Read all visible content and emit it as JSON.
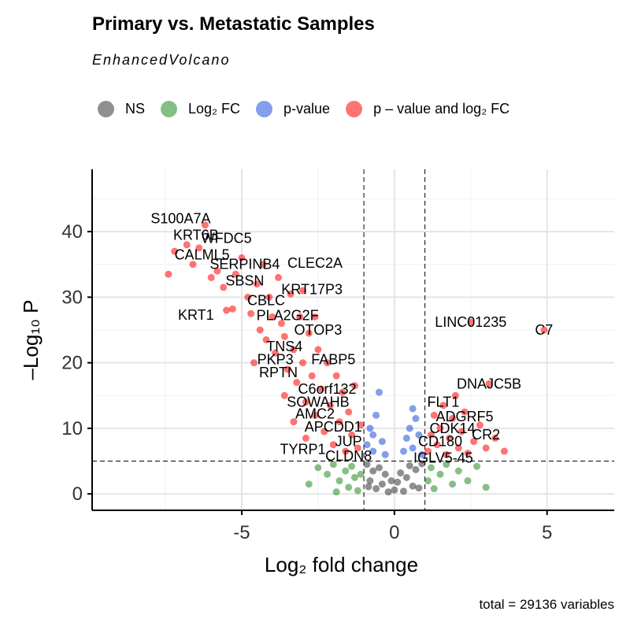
{
  "title": "Primary vs. Metastatic Samples",
  "subtitle": "EnhancedVolcano",
  "caption": "total = 29136 variables",
  "legend": [
    {
      "key": "ns",
      "label": "NS",
      "color": "#333333"
    },
    {
      "key": "fc",
      "label": "Log₂ FC",
      "color": "#228b22"
    },
    {
      "key": "p",
      "label": "p-value",
      "color": "#1e4fd8"
    },
    {
      "key": "pfc",
      "label": "p – value and log₂ FC",
      "color": "#ff0000"
    }
  ],
  "chart_data": {
    "type": "scatter",
    "xlabel": "Log₂ fold change",
    "ylabel": "–Log₁₀ P",
    "xlim": [
      -9.9,
      7.2
    ],
    "ylim": [
      -2.5,
      49.5
    ],
    "xticks": [
      -5,
      0,
      5
    ],
    "yticks": [
      0,
      10,
      20,
      30,
      40
    ],
    "fc_cutoff": 1,
    "p_cutoff_neglog10": 5,
    "grid": true,
    "legend_position": "top",
    "colors": {
      "ns": "#333333",
      "fc": "#228b22",
      "p": "#1e4fd8",
      "pfc": "#ff0000"
    },
    "labeled_points": [
      {
        "label": "S100A7A",
        "x": -7.0,
        "y": 42.0
      },
      {
        "label": "KRT6B",
        "x": -6.5,
        "y": 39.5
      },
      {
        "label": "WFDC5",
        "x": -5.5,
        "y": 39.0
      },
      {
        "label": "CALML5",
        "x": -6.3,
        "y": 36.5
      },
      {
        "label": "SERPINB4",
        "x": -4.9,
        "y": 35.0
      },
      {
        "label": "CLEC2A",
        "x": -2.6,
        "y": 35.2
      },
      {
        "label": "SBSN",
        "x": -4.9,
        "y": 32.5
      },
      {
        "label": "KRT17P3",
        "x": -2.7,
        "y": 31.2
      },
      {
        "label": "CBLC",
        "x": -4.2,
        "y": 29.5
      },
      {
        "label": "KRT1",
        "x": -6.5,
        "y": 27.3
      },
      {
        "label": "PLA2G2F",
        "x": -3.5,
        "y": 27.2
      },
      {
        "label": "OTOP3",
        "x": -2.5,
        "y": 25.0
      },
      {
        "label": "TNS4",
        "x": -3.6,
        "y": 22.5
      },
      {
        "label": "PKP3",
        "x": -3.9,
        "y": 20.5
      },
      {
        "label": "FABP5",
        "x": -2.0,
        "y": 20.5
      },
      {
        "label": "RPTN",
        "x": -3.8,
        "y": 18.5
      },
      {
        "label": "C6orf132",
        "x": -2.2,
        "y": 16.0
      },
      {
        "label": "SOWAHB",
        "x": -2.5,
        "y": 14.0
      },
      {
        "label": "AMC2",
        "x": -2.6,
        "y": 12.2
      },
      {
        "label": "APCDD1",
        "x": -2.0,
        "y": 10.2
      },
      {
        "label": "JUP",
        "x": -1.5,
        "y": 8.0
      },
      {
        "label": "TYRP1",
        "x": -3.0,
        "y": 6.8
      },
      {
        "label": "CLDN8",
        "x": -1.5,
        "y": 5.8
      },
      {
        "label": "LINC01235",
        "x": 2.5,
        "y": 26.2
      },
      {
        "label": "C7",
        "x": 4.9,
        "y": 25.0
      },
      {
        "label": "DNAJC5B",
        "x": 3.1,
        "y": 16.8
      },
      {
        "label": "FLT1",
        "x": 1.6,
        "y": 14.0
      },
      {
        "label": "ADGRF5",
        "x": 2.3,
        "y": 11.8
      },
      {
        "label": "CDK14",
        "x": 1.9,
        "y": 10.0
      },
      {
        "label": "CR2",
        "x": 3.0,
        "y": 9.0
      },
      {
        "label": "CD180",
        "x": 1.5,
        "y": 8.0
      },
      {
        "label": "IGLV5-45",
        "x": 1.6,
        "y": 5.5
      }
    ],
    "points": [
      {
        "x": -7.4,
        "y": 33.5,
        "g": "pfc"
      },
      {
        "x": -7.2,
        "y": 37.0,
        "g": "pfc"
      },
      {
        "x": -6.8,
        "y": 38.0,
        "g": "pfc"
      },
      {
        "x": -6.6,
        "y": 35.0,
        "g": "pfc"
      },
      {
        "x": -6.4,
        "y": 37.5,
        "g": "pfc"
      },
      {
        "x": -6.2,
        "y": 41.0,
        "g": "pfc"
      },
      {
        "x": -6.0,
        "y": 33.0,
        "g": "pfc"
      },
      {
        "x": -5.8,
        "y": 34.0,
        "g": "pfc"
      },
      {
        "x": -5.6,
        "y": 31.5,
        "g": "pfc"
      },
      {
        "x": -5.5,
        "y": 28.0,
        "g": "pfc"
      },
      {
        "x": -5.3,
        "y": 28.2,
        "g": "pfc"
      },
      {
        "x": -5.2,
        "y": 33.5,
        "g": "pfc"
      },
      {
        "x": -5.0,
        "y": 36.0,
        "g": "pfc"
      },
      {
        "x": -4.8,
        "y": 30.0,
        "g": "pfc"
      },
      {
        "x": -4.7,
        "y": 27.5,
        "g": "pfc"
      },
      {
        "x": -4.5,
        "y": 32.0,
        "g": "pfc"
      },
      {
        "x": -4.4,
        "y": 25.0,
        "g": "pfc"
      },
      {
        "x": -4.3,
        "y": 35.0,
        "g": "pfc"
      },
      {
        "x": -4.2,
        "y": 23.5,
        "g": "pfc"
      },
      {
        "x": -4.1,
        "y": 30.0,
        "g": "pfc"
      },
      {
        "x": -4.0,
        "y": 27.0,
        "g": "pfc"
      },
      {
        "x": -3.9,
        "y": 21.5,
        "g": "pfc"
      },
      {
        "x": -3.8,
        "y": 33.0,
        "g": "pfc"
      },
      {
        "x": -3.7,
        "y": 26.0,
        "g": "pfc"
      },
      {
        "x": -3.6,
        "y": 24.0,
        "g": "pfc"
      },
      {
        "x": -3.5,
        "y": 19.0,
        "g": "pfc"
      },
      {
        "x": -3.4,
        "y": 30.5,
        "g": "pfc"
      },
      {
        "x": -3.3,
        "y": 22.0,
        "g": "pfc"
      },
      {
        "x": -3.2,
        "y": 17.0,
        "g": "pfc"
      },
      {
        "x": -3.1,
        "y": 27.0,
        "g": "pfc"
      },
      {
        "x": -3.0,
        "y": 20.0,
        "g": "pfc"
      },
      {
        "x": -2.9,
        "y": 14.0,
        "g": "pfc"
      },
      {
        "x": -2.8,
        "y": 24.5,
        "g": "pfc"
      },
      {
        "x": -2.7,
        "y": 18.0,
        "g": "pfc"
      },
      {
        "x": -2.6,
        "y": 12.0,
        "g": "pfc"
      },
      {
        "x": -2.5,
        "y": 22.0,
        "g": "pfc"
      },
      {
        "x": -2.4,
        "y": 16.0,
        "g": "pfc"
      },
      {
        "x": -2.3,
        "y": 9.5,
        "g": "pfc"
      },
      {
        "x": -2.2,
        "y": 20.0,
        "g": "pfc"
      },
      {
        "x": -2.1,
        "y": 13.5,
        "g": "pfc"
      },
      {
        "x": -2.0,
        "y": 7.5,
        "g": "pfc"
      },
      {
        "x": -1.9,
        "y": 18.0,
        "g": "pfc"
      },
      {
        "x": -1.8,
        "y": 11.0,
        "g": "pfc"
      },
      {
        "x": -1.7,
        "y": 15.5,
        "g": "pfc"
      },
      {
        "x": -1.6,
        "y": 6.5,
        "g": "pfc"
      },
      {
        "x": -1.5,
        "y": 12.5,
        "g": "pfc"
      },
      {
        "x": -1.4,
        "y": 9.0,
        "g": "pfc"
      },
      {
        "x": -1.3,
        "y": 16.5,
        "g": "pfc"
      },
      {
        "x": -1.2,
        "y": 7.0,
        "g": "pfc"
      },
      {
        "x": -1.1,
        "y": 10.5,
        "g": "pfc"
      },
      {
        "x": -3.3,
        "y": 11.0,
        "g": "pfc"
      },
      {
        "x": -2.9,
        "y": 8.5,
        "g": "pfc"
      },
      {
        "x": -3.6,
        "y": 15.0,
        "g": "pfc"
      },
      {
        "x": -4.6,
        "y": 20.0,
        "g": "pfc"
      },
      {
        "x": -3.0,
        "y": 31.0,
        "g": "pfc"
      },
      {
        "x": -2.6,
        "y": 27.0,
        "g": "pfc"
      },
      {
        "x": 1.1,
        "y": 6.5,
        "g": "pfc"
      },
      {
        "x": 1.2,
        "y": 9.0,
        "g": "pfc"
      },
      {
        "x": 1.3,
        "y": 12.0,
        "g": "pfc"
      },
      {
        "x": 1.4,
        "y": 7.5,
        "g": "pfc"
      },
      {
        "x": 1.5,
        "y": 10.0,
        "g": "pfc"
      },
      {
        "x": 1.6,
        "y": 13.5,
        "g": "pfc"
      },
      {
        "x": 1.7,
        "y": 6.0,
        "g": "pfc"
      },
      {
        "x": 1.8,
        "y": 8.5,
        "g": "pfc"
      },
      {
        "x": 1.9,
        "y": 11.5,
        "g": "pfc"
      },
      {
        "x": 2.0,
        "y": 15.0,
        "g": "pfc"
      },
      {
        "x": 2.1,
        "y": 7.0,
        "g": "pfc"
      },
      {
        "x": 2.2,
        "y": 9.5,
        "g": "pfc"
      },
      {
        "x": 2.3,
        "y": 12.5,
        "g": "pfc"
      },
      {
        "x": 2.4,
        "y": 6.2,
        "g": "pfc"
      },
      {
        "x": 2.6,
        "y": 8.0,
        "g": "pfc"
      },
      {
        "x": 2.8,
        "y": 10.5,
        "g": "pfc"
      },
      {
        "x": 3.0,
        "y": 7.0,
        "g": "pfc"
      },
      {
        "x": 3.3,
        "y": 8.5,
        "g": "pfc"
      },
      {
        "x": 3.6,
        "y": 6.5,
        "g": "pfc"
      },
      {
        "x": 2.5,
        "y": 26.2,
        "g": "pfc"
      },
      {
        "x": 4.9,
        "y": 25.0,
        "g": "pfc"
      },
      {
        "x": 3.1,
        "y": 16.8,
        "g": "pfc"
      },
      {
        "x": -0.9,
        "y": 7.5,
        "g": "p"
      },
      {
        "x": -0.8,
        "y": 10.0,
        "g": "p"
      },
      {
        "x": -0.7,
        "y": 6.5,
        "g": "p"
      },
      {
        "x": -0.6,
        "y": 12.0,
        "g": "p"
      },
      {
        "x": -0.5,
        "y": 15.5,
        "g": "p"
      },
      {
        "x": -0.4,
        "y": 8.0,
        "g": "p"
      },
      {
        "x": -0.3,
        "y": 6.0,
        "g": "p"
      },
      {
        "x": -0.7,
        "y": 9.0,
        "g": "p"
      },
      {
        "x": 0.3,
        "y": 6.5,
        "g": "p"
      },
      {
        "x": 0.4,
        "y": 8.5,
        "g": "p"
      },
      {
        "x": 0.5,
        "y": 10.0,
        "g": "p"
      },
      {
        "x": 0.6,
        "y": 7.0,
        "g": "p"
      },
      {
        "x": 0.7,
        "y": 11.5,
        "g": "p"
      },
      {
        "x": 0.8,
        "y": 9.0,
        "g": "p"
      },
      {
        "x": 0.9,
        "y": 6.0,
        "g": "p"
      },
      {
        "x": 0.6,
        "y": 13.0,
        "g": "p"
      },
      {
        "x": -2.5,
        "y": 4.0,
        "g": "fc"
      },
      {
        "x": -2.2,
        "y": 3.0,
        "g": "fc"
      },
      {
        "x": -2.0,
        "y": 4.5,
        "g": "fc"
      },
      {
        "x": -1.8,
        "y": 2.0,
        "g": "fc"
      },
      {
        "x": -1.6,
        "y": 3.5,
        "g": "fc"
      },
      {
        "x": -1.5,
        "y": 1.0,
        "g": "fc"
      },
      {
        "x": -1.4,
        "y": 4.2,
        "g": "fc"
      },
      {
        "x": -1.3,
        "y": 2.5,
        "g": "fc"
      },
      {
        "x": -1.2,
        "y": 0.5,
        "g": "fc"
      },
      {
        "x": -1.1,
        "y": 3.0,
        "g": "fc"
      },
      {
        "x": -2.8,
        "y": 1.5,
        "g": "fc"
      },
      {
        "x": -1.9,
        "y": 0.3,
        "g": "fc"
      },
      {
        "x": 1.1,
        "y": 2.0,
        "g": "fc"
      },
      {
        "x": 1.2,
        "y": 4.0,
        "g": "fc"
      },
      {
        "x": 1.3,
        "y": 0.8,
        "g": "fc"
      },
      {
        "x": 1.5,
        "y": 3.0,
        "g": "fc"
      },
      {
        "x": 1.7,
        "y": 4.5,
        "g": "fc"
      },
      {
        "x": 1.9,
        "y": 1.5,
        "g": "fc"
      },
      {
        "x": 2.1,
        "y": 3.5,
        "g": "fc"
      },
      {
        "x": 2.4,
        "y": 2.0,
        "g": "fc"
      },
      {
        "x": 2.7,
        "y": 4.2,
        "g": "fc"
      },
      {
        "x": 3.0,
        "y": 1.0,
        "g": "fc"
      },
      {
        "x": -0.9,
        "y": 4.5,
        "g": "ns"
      },
      {
        "x": -0.8,
        "y": 2.0,
        "g": "ns"
      },
      {
        "x": -0.7,
        "y": 3.5,
        "g": "ns"
      },
      {
        "x": -0.6,
        "y": 0.8,
        "g": "ns"
      },
      {
        "x": -0.5,
        "y": 4.0,
        "g": "ns"
      },
      {
        "x": -0.4,
        "y": 1.5,
        "g": "ns"
      },
      {
        "x": -0.3,
        "y": 3.0,
        "g": "ns"
      },
      {
        "x": -0.2,
        "y": 0.3,
        "g": "ns"
      },
      {
        "x": -0.1,
        "y": 2.0,
        "g": "ns"
      },
      {
        "x": 0.0,
        "y": 0.6,
        "g": "ns"
      },
      {
        "x": 0.1,
        "y": 1.8,
        "g": "ns"
      },
      {
        "x": 0.2,
        "y": 3.2,
        "g": "ns"
      },
      {
        "x": 0.3,
        "y": 0.4,
        "g": "ns"
      },
      {
        "x": 0.4,
        "y": 2.5,
        "g": "ns"
      },
      {
        "x": 0.5,
        "y": 4.3,
        "g": "ns"
      },
      {
        "x": 0.6,
        "y": 1.2,
        "g": "ns"
      },
      {
        "x": 0.7,
        "y": 3.7,
        "g": "ns"
      },
      {
        "x": 0.8,
        "y": 0.9,
        "g": "ns"
      },
      {
        "x": 0.9,
        "y": 4.6,
        "g": "ns"
      },
      {
        "x": -0.85,
        "y": 1.1,
        "g": "ns"
      }
    ]
  }
}
